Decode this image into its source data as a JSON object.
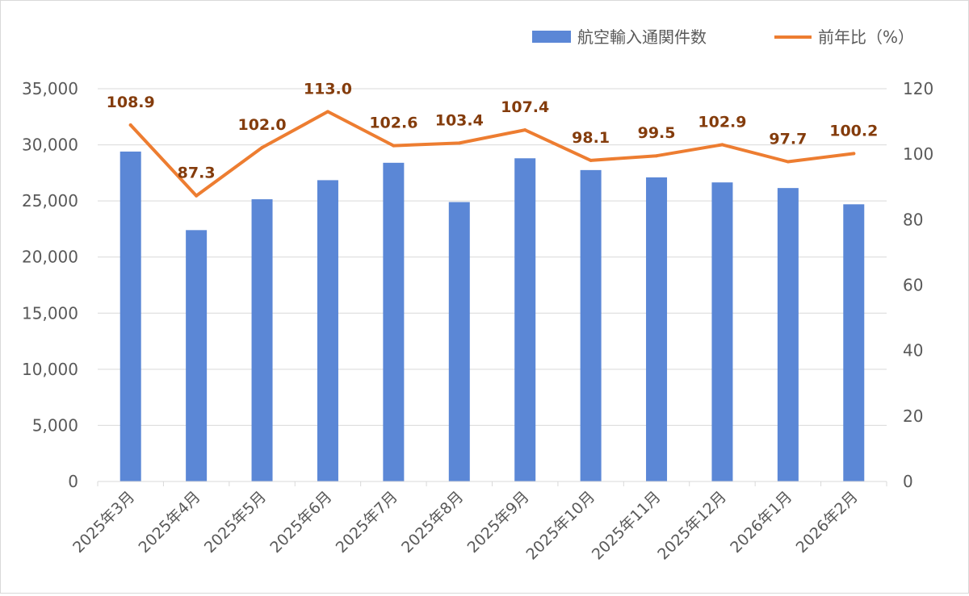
{
  "chart_data": {
    "type": "bar+line",
    "categories": [
      "2025年3月",
      "2025年4月",
      "2025年5月",
      "2025年6月",
      "2025年7月",
      "2025年8月",
      "2025年9月",
      "2025年10月",
      "2025年11月",
      "2025年12月",
      "2026年1月",
      "2026年2月"
    ],
    "series": [
      {
        "name": "航空輸入通関件数",
        "type": "bar",
        "axis": "left",
        "color": "#5b87d6",
        "values": [
          29400,
          22400,
          25150,
          26850,
          28400,
          24900,
          28800,
          27750,
          27100,
          26650,
          26150,
          24700
        ]
      },
      {
        "name": "前年比（%）",
        "type": "line",
        "axis": "right",
        "color": "#ed7d31",
        "values": [
          108.9,
          87.3,
          102.0,
          113.0,
          102.6,
          103.4,
          107.4,
          98.1,
          99.5,
          102.9,
          97.7,
          100.2
        ],
        "labels": [
          "108.9",
          "87.3",
          "102.0",
          "113.0",
          "102.6",
          "103.4",
          "107.4",
          "98.1",
          "99.5",
          "102.9",
          "97.7",
          "100.2"
        ]
      }
    ],
    "y_left": {
      "range": [
        0,
        35000
      ],
      "ticks": [
        "0",
        "5,000",
        "10,000",
        "15,000",
        "20,000",
        "25,000",
        "30,000",
        "35,000"
      ]
    },
    "y_right": {
      "range": [
        0,
        120
      ],
      "ticks": [
        "0",
        "20",
        "40",
        "60",
        "80",
        "100",
        "120"
      ]
    },
    "grid": true,
    "legend": "top-right",
    "label_color": "#843c0c",
    "grid_color": "#d9d9d9"
  }
}
